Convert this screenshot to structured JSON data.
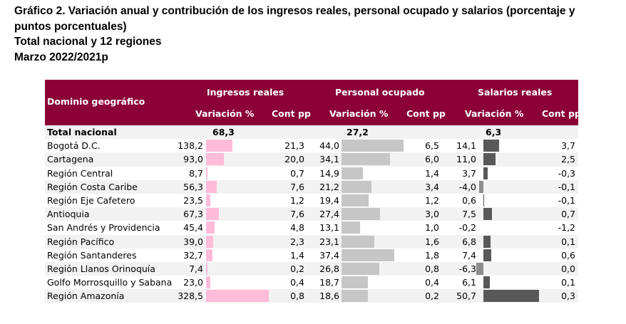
{
  "title_lines": [
    "Gráfico 2. Variación anual y contribución de los ingresos reales, personal ocupado y salarios (porcentaje y",
    "puntos porcentuales)",
    "Total nacional y 12 regiones",
    "Marzo 2022/2021p"
  ],
  "chart_data": {
    "type": "table",
    "headers": {
      "domain": "Dominio geográfico",
      "groups": [
        "Ingresos reales",
        "Personal ocupado",
        "Salarios reales"
      ],
      "variation": "Variación %",
      "cont": "Cont pp"
    },
    "total": {
      "name": "Total nacional",
      "ingresos": "68,3",
      "personal": "27,2",
      "salarios": "6,3"
    },
    "rows": [
      {
        "name": "Bogotá D.C.",
        "ing_var": "138,2",
        "ing_cont": "21,3",
        "per_var": "44,0",
        "per_cont": "6,5",
        "sal_var": "14,1",
        "sal_cont": "3,7"
      },
      {
        "name": "Cartagena",
        "ing_var": "93,0",
        "ing_cont": "20,0",
        "per_var": "34,1",
        "per_cont": "6,0",
        "sal_var": "11,0",
        "sal_cont": "2,5"
      },
      {
        "name": "Región Central",
        "ing_var": "8,7",
        "ing_cont": "0,7",
        "per_var": "14,9",
        "per_cont": "1,4",
        "sal_var": "3,7",
        "sal_cont": "-0,3"
      },
      {
        "name": "Región Costa Caribe",
        "ing_var": "56,3",
        "ing_cont": "7,6",
        "per_var": "21,2",
        "per_cont": "3,4",
        "sal_var": "-4,0",
        "sal_cont": "-0,1"
      },
      {
        "name": "Región Eje Cafetero",
        "ing_var": "23,5",
        "ing_cont": "1,2",
        "per_var": "19,4",
        "per_cont": "1,2",
        "sal_var": "0,6",
        "sal_cont": "-0,1"
      },
      {
        "name": "Antioquia",
        "ing_var": "67,3",
        "ing_cont": "7,6",
        "per_var": "27,4",
        "per_cont": "3,0",
        "sal_var": "7,5",
        "sal_cont": "0,7"
      },
      {
        "name": "San Andrés y Providencia",
        "ing_var": "45,4",
        "ing_cont": "4,8",
        "per_var": "13,1",
        "per_cont": "1,0",
        "sal_var": "-0,2",
        "sal_cont": "-1,2"
      },
      {
        "name": "Región Pacífico",
        "ing_var": "39,0",
        "ing_cont": "2,3",
        "per_var": "23,1",
        "per_cont": "1,6",
        "sal_var": "6,8",
        "sal_cont": "0,1"
      },
      {
        "name": "Región Santanderes",
        "ing_var": "32,7",
        "ing_cont": "1,4",
        "per_var": "37,4",
        "per_cont": "1,8",
        "sal_var": "7,4",
        "sal_cont": "0,6"
      },
      {
        "name": "Región Llanos Orinoquía",
        "ing_var": "7,4",
        "ing_cont": "0,2",
        "per_var": "26,8",
        "per_cont": "0,8",
        "sal_var": "-6,3",
        "sal_cont": "0,0"
      },
      {
        "name": "Golfo Morrosquillo y Sabana",
        "ing_var": "23,0",
        "ing_cont": "0,4",
        "per_var": "18,7",
        "per_cont": "0,4",
        "sal_var": "6,1",
        "sal_cont": "0,1"
      },
      {
        "name": "Región Amazonía",
        "ing_var": "328,5",
        "ing_cont": "0,8",
        "per_var": "18,6",
        "per_cont": "0,2",
        "sal_var": "50,7",
        "sal_cont": "0,3"
      }
    ],
    "colors": {
      "header": "#8a0037",
      "ingresos_bar": "#ffbcd9",
      "personal_bar": "#c6c6c6",
      "salarios_bar_pos": "#595959",
      "salarios_bar_neg": "#8c8c8c",
      "stripe": "#f2f2f2"
    }
  }
}
